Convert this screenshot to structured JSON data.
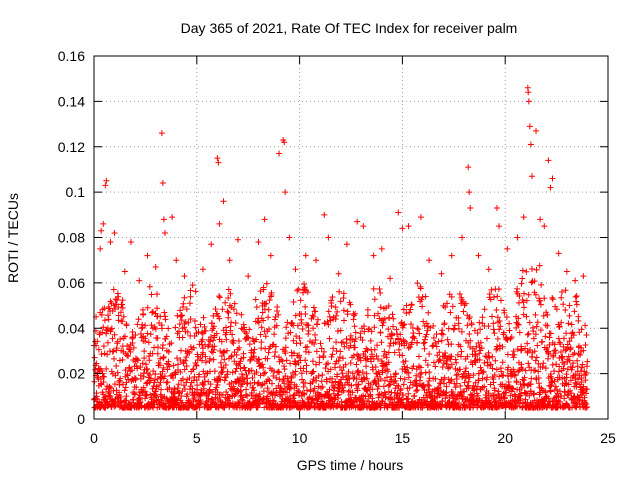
{
  "chart_data": {
    "type": "scatter",
    "title": "Day 365 of 2021, Rate Of TEC Index for receiver palm",
    "xlabel": "GPS time / hours",
    "ylabel": "ROTI / TECUs",
    "xlim": [
      0,
      25
    ],
    "ylim": [
      0,
      0.16
    ],
    "xticks": [
      0,
      5,
      10,
      15,
      20,
      25
    ],
    "xtick_labels": [
      "0",
      "5",
      "10",
      "15",
      "20",
      "25"
    ],
    "yticks": [
      0,
      0.02,
      0.04,
      0.06,
      0.08,
      0.1,
      0.12,
      0.14,
      0.16
    ],
    "ytick_labels": [
      "0",
      "0.02",
      "0.04",
      "0.06",
      "0.08",
      "0.1",
      "0.12",
      "0.14",
      "0.16"
    ],
    "grid": true,
    "marker": "+",
    "color": "#ff0000",
    "x_data_range": [
      0,
      24
    ],
    "typical_y_range": [
      0.005,
      0.06
    ],
    "points": [
      [
        0.1,
        0.045
      ],
      [
        0.3,
        0.075
      ],
      [
        0.35,
        0.083
      ],
      [
        0.45,
        0.086
      ],
      [
        0.55,
        0.103
      ],
      [
        0.6,
        0.105
      ],
      [
        0.8,
        0.078
      ],
      [
        1.0,
        0.082
      ],
      [
        1.5,
        0.065
      ],
      [
        1.8,
        0.078
      ],
      [
        2.2,
        0.061
      ],
      [
        2.6,
        0.072
      ],
      [
        3.0,
        0.067
      ],
      [
        3.3,
        0.126
      ],
      [
        3.35,
        0.104
      ],
      [
        3.4,
        0.088
      ],
      [
        3.45,
        0.082
      ],
      [
        3.8,
        0.089
      ],
      [
        4.0,
        0.07
      ],
      [
        4.4,
        0.063
      ],
      [
        4.8,
        0.059
      ],
      [
        5.3,
        0.066
      ],
      [
        5.7,
        0.077
      ],
      [
        6.0,
        0.115
      ],
      [
        6.05,
        0.113
      ],
      [
        6.1,
        0.086
      ],
      [
        6.3,
        0.096
      ],
      [
        6.6,
        0.07
      ],
      [
        7.0,
        0.079
      ],
      [
        7.5,
        0.063
      ],
      [
        8.0,
        0.078
      ],
      [
        8.3,
        0.088
      ],
      [
        8.6,
        0.072
      ],
      [
        9.0,
        0.117
      ],
      [
        9.2,
        0.123
      ],
      [
        9.25,
        0.122
      ],
      [
        9.3,
        0.1
      ],
      [
        9.5,
        0.08
      ],
      [
        9.8,
        0.066
      ],
      [
        10.3,
        0.072
      ],
      [
        10.8,
        0.07
      ],
      [
        11.2,
        0.09
      ],
      [
        11.4,
        0.08
      ],
      [
        11.9,
        0.064
      ],
      [
        12.3,
        0.077
      ],
      [
        12.8,
        0.087
      ],
      [
        13.1,
        0.085
      ],
      [
        13.6,
        0.072
      ],
      [
        14.0,
        0.075
      ],
      [
        14.4,
        0.062
      ],
      [
        14.8,
        0.091
      ],
      [
        15.0,
        0.084
      ],
      [
        15.3,
        0.085
      ],
      [
        15.9,
        0.089
      ],
      [
        16.3,
        0.07
      ],
      [
        16.9,
        0.064
      ],
      [
        17.4,
        0.072
      ],
      [
        17.9,
        0.08
      ],
      [
        18.2,
        0.111
      ],
      [
        18.25,
        0.1
      ],
      [
        18.3,
        0.093
      ],
      [
        18.7,
        0.072
      ],
      [
        19.2,
        0.066
      ],
      [
        19.6,
        0.093
      ],
      [
        19.7,
        0.085
      ],
      [
        20.1,
        0.075
      ],
      [
        20.6,
        0.08
      ],
      [
        20.9,
        0.089
      ],
      [
        21.1,
        0.146
      ],
      [
        21.12,
        0.144
      ],
      [
        21.15,
        0.14
      ],
      [
        21.2,
        0.129
      ],
      [
        21.25,
        0.121
      ],
      [
        21.3,
        0.107
      ],
      [
        21.5,
        0.127
      ],
      [
        21.7,
        0.088
      ],
      [
        21.9,
        0.085
      ],
      [
        22.1,
        0.114
      ],
      [
        22.2,
        0.102
      ],
      [
        22.3,
        0.106
      ],
      [
        22.6,
        0.073
      ],
      [
        23.0,
        0.065
      ],
      [
        23.4,
        0.061
      ],
      [
        23.8,
        0.063
      ]
    ]
  }
}
